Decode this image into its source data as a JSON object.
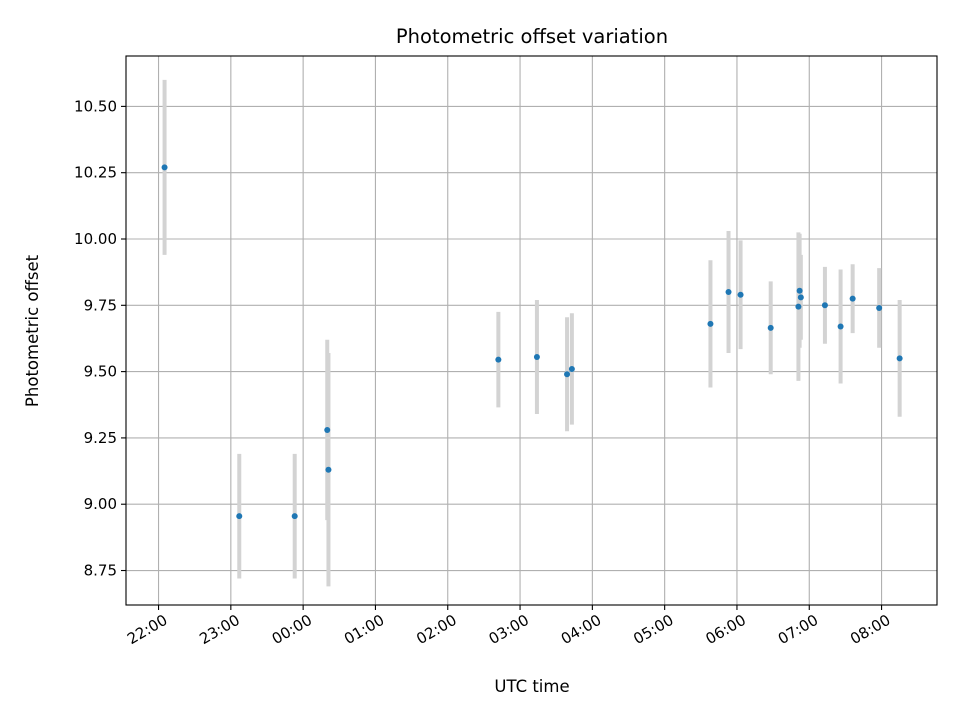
{
  "chart_data": {
    "type": "scatter",
    "title": "Photometric offset variation",
    "xlabel": "UTC time",
    "ylabel": "Photometric offset",
    "xlim": [
      "21:33",
      "08:46"
    ],
    "ylim": [
      8.62,
      10.69
    ],
    "x_ticks": [
      "22:00",
      "23:00",
      "00:00",
      "01:00",
      "02:00",
      "03:00",
      "04:00",
      "05:00",
      "06:00",
      "07:00",
      "08:00"
    ],
    "y_ticks": [
      "8.75",
      "9.00",
      "9.25",
      "9.50",
      "9.75",
      "10.00",
      "10.25",
      "10.50"
    ],
    "grid": true,
    "marker_color": "#1f77b4",
    "errorbar_color": "#d3d3d3",
    "points": [
      {
        "time": "22:05",
        "y": 10.27,
        "err": 0.33
      },
      {
        "time": "23:07",
        "y": 8.955,
        "err": 0.235
      },
      {
        "time": "23:53",
        "y": 8.955,
        "err": 0.235
      },
      {
        "time": "00:20",
        "y": 9.28,
        "err": 0.34
      },
      {
        "time": "00:21",
        "y": 9.13,
        "err": 0.44
      },
      {
        "time": "02:42",
        "y": 9.545,
        "err": 0.18
      },
      {
        "time": "03:14",
        "y": 9.555,
        "err": 0.215
      },
      {
        "time": "03:39",
        "y": 9.49,
        "err": 0.215
      },
      {
        "time": "03:43",
        "y": 9.51,
        "err": 0.21
      },
      {
        "time": "05:38",
        "y": 9.68,
        "err": 0.24
      },
      {
        "time": "05:53",
        "y": 9.8,
        "err": 0.23
      },
      {
        "time": "06:03",
        "y": 9.79,
        "err": 0.205
      },
      {
        "time": "06:28",
        "y": 9.665,
        "err": 0.175
      },
      {
        "time": "06:51",
        "y": 9.745,
        "err": 0.28
      },
      {
        "time": "06:52",
        "y": 9.805,
        "err": 0.215
      },
      {
        "time": "06:53",
        "y": 9.78,
        "err": 0.16
      },
      {
        "time": "07:13",
        "y": 9.75,
        "err": 0.145
      },
      {
        "time": "07:26",
        "y": 9.67,
        "err": 0.215
      },
      {
        "time": "07:36",
        "y": 9.775,
        "err": 0.13
      },
      {
        "time": "07:58",
        "y": 9.74,
        "err": 0.15
      },
      {
        "time": "08:15",
        "y": 9.55,
        "err": 0.22
      }
    ]
  }
}
